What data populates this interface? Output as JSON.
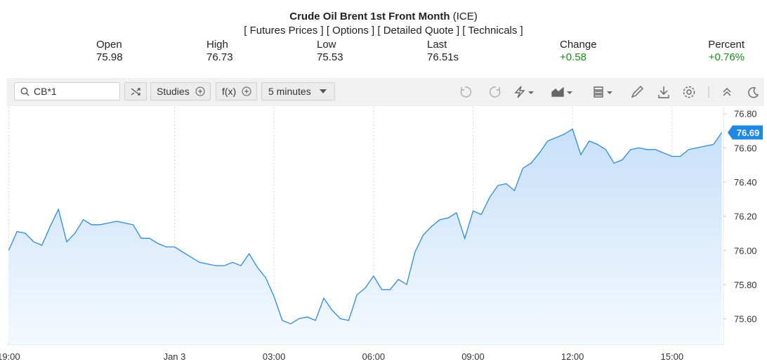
{
  "header": {
    "title": "Crude Oil Brent 1st Front Month",
    "exchange": "(ICE)",
    "links": [
      "[ Futures Prices ]",
      "[ Options ]",
      "[ Detailed Quote ]",
      "[ Technicals ]"
    ],
    "stats": [
      {
        "label": "Open",
        "value": "75.98"
      },
      {
        "label": "High",
        "value": "76.73"
      },
      {
        "label": "Low",
        "value": "75.53"
      },
      {
        "label": "Last",
        "value": "76.51s"
      },
      {
        "label": "Change",
        "value": "+0.58"
      },
      {
        "label": "Percent",
        "value": "+0.76%"
      }
    ]
  },
  "toolbar": {
    "symbol": "CB*1",
    "buttons": [
      "Studies",
      "f(x)",
      "5 minutes"
    ]
  },
  "chart_data": {
    "type": "area",
    "color": "#2f8ad8",
    "x": [
      -5,
      -4.75,
      -4.5,
      -4.25,
      -4,
      -3.75,
      -3.5,
      -3.25,
      -3,
      -2.75,
      -2.5,
      -2.25,
      -2,
      -1.75,
      -1.5,
      -1.25,
      -1,
      -0.75,
      -0.5,
      -0.25,
      0,
      0.25,
      0.5,
      0.75,
      1,
      1.25,
      1.5,
      1.75,
      2,
      2.25,
      2.5,
      2.75,
      3,
      3.25,
      3.5,
      3.75,
      4,
      4.25,
      4.5,
      4.75,
      5,
      5.25,
      5.5,
      5.75,
      6,
      6.25,
      6.5,
      6.75,
      7,
      7.25,
      7.5,
      7.75,
      8,
      8.25,
      8.5,
      8.75,
      9,
      9.25,
      9.5,
      9.75,
      10,
      10.25,
      10.5,
      10.75,
      11,
      11.25,
      11.5,
      11.75,
      12,
      12.25,
      12.5,
      12.75,
      13,
      13.25,
      13.5,
      13.75,
      14,
      14.25,
      14.5,
      14.75,
      15,
      15.25,
      15.5,
      15.75,
      16,
      16.25,
      16.5
    ],
    "values": [
      76.0,
      76.11,
      76.1,
      76.05,
      76.03,
      76.14,
      76.24,
      76.05,
      76.1,
      76.18,
      76.15,
      76.15,
      76.16,
      76.17,
      76.16,
      76.15,
      76.07,
      76.07,
      76.04,
      76.02,
      76.02,
      75.99,
      75.96,
      75.93,
      75.92,
      75.91,
      75.91,
      75.93,
      75.91,
      75.98,
      75.9,
      75.84,
      75.73,
      75.59,
      75.57,
      75.6,
      75.61,
      75.59,
      75.72,
      75.65,
      75.6,
      75.59,
      75.74,
      75.78,
      75.85,
      75.77,
      75.77,
      75.83,
      75.8,
      75.99,
      76.09,
      76.14,
      76.18,
      76.19,
      76.22,
      76.07,
      76.23,
      76.21,
      76.31,
      76.38,
      76.39,
      76.35,
      76.48,
      76.51,
      76.57,
      76.64,
      76.66,
      76.68,
      76.71,
      76.56,
      76.64,
      76.62,
      76.59,
      76.51,
      76.53,
      76.59,
      76.6,
      76.59,
      76.59,
      76.57,
      76.55,
      76.55,
      76.59,
      76.6,
      76.61,
      76.62,
      76.69
    ],
    "last_value": 76.69,
    "xlim": [
      -5.05,
      16.55
    ],
    "xticks": [
      {
        "value": -5,
        "label": "19:00"
      },
      {
        "value": 0,
        "label": "Jan 3"
      },
      {
        "value": 3,
        "label": "03:00"
      },
      {
        "value": 6,
        "label": "06:00"
      },
      {
        "value": 9,
        "label": "09:00"
      },
      {
        "value": 12,
        "label": "12:00"
      },
      {
        "value": 15,
        "label": "15:00"
      }
    ],
    "ylim": [
      75.45,
      76.84
    ],
    "yticks": [
      {
        "value": 75.6,
        "label": "75.60"
      },
      {
        "value": 75.8,
        "label": "75.80"
      },
      {
        "value": 76,
        "label": "76.00"
      },
      {
        "value": 76.2,
        "label": "76.20"
      },
      {
        "value": 76.4,
        "label": "76.40"
      },
      {
        "value": 76.6,
        "label": "76.60"
      },
      {
        "value": 76.8,
        "label": "76.80"
      }
    ],
    "grid": "vertical"
  }
}
